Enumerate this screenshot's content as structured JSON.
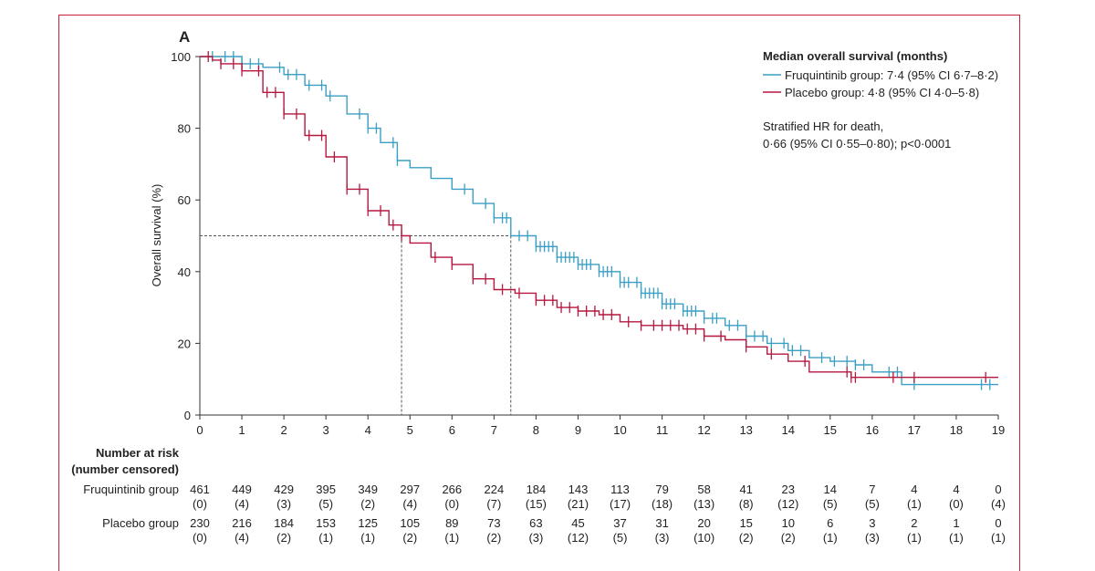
{
  "chart_data": {
    "type": "line",
    "panel_label": "A",
    "ylabel": "Overall survival (%)",
    "xlim": [
      0,
      19
    ],
    "ylim": [
      0,
      100
    ],
    "x_ticks": [
      "0",
      "1",
      "2",
      "3",
      "4",
      "5",
      "6",
      "7",
      "8",
      "9",
      "10",
      "11",
      "12",
      "13",
      "14",
      "15",
      "16",
      "17",
      "18",
      "19"
    ],
    "y_ticks": [
      "0",
      "20",
      "40",
      "60",
      "80",
      "100"
    ],
    "legend": {
      "title": "Median overall survival (months)",
      "entries": [
        {
          "label": "Fruquintinib group: 7·4 (95% CI 6·7–8·2)",
          "color": "#3a9fc4"
        },
        {
          "label": "Placebo group: 4·8 (95% CI 4·0–5·8)",
          "color": "#b5173f"
        }
      ],
      "hr_line1": "Stratified HR for death,",
      "hr_line2": "0·66 (95% CI 0·55–0·80); p<0·0001"
    },
    "median_lines": {
      "y": 50,
      "x": [
        4.8,
        7.4
      ]
    },
    "series": [
      {
        "name": "Fruquintinib group",
        "color": "#3a9fc4",
        "points": [
          [
            0,
            100
          ],
          [
            0.5,
            100
          ],
          [
            1,
            98
          ],
          [
            1.5,
            97
          ],
          [
            2,
            95
          ],
          [
            2.5,
            92
          ],
          [
            3,
            89
          ],
          [
            3.5,
            84
          ],
          [
            4,
            80
          ],
          [
            4.3,
            76
          ],
          [
            4.7,
            71
          ],
          [
            5,
            69
          ],
          [
            5.5,
            66
          ],
          [
            6,
            63
          ],
          [
            6.5,
            59
          ],
          [
            7,
            55
          ],
          [
            7.4,
            50
          ],
          [
            8,
            47
          ],
          [
            8.5,
            44
          ],
          [
            9,
            42
          ],
          [
            9.5,
            40
          ],
          [
            10,
            37
          ],
          [
            10.5,
            34
          ],
          [
            11,
            31
          ],
          [
            11.5,
            29
          ],
          [
            12,
            27
          ],
          [
            12.5,
            25
          ],
          [
            13,
            22
          ],
          [
            13.5,
            20
          ],
          [
            14,
            18
          ],
          [
            14.5,
            16
          ],
          [
            15,
            15
          ],
          [
            15.6,
            14
          ],
          [
            16,
            12
          ],
          [
            16.6,
            12
          ],
          [
            16.7,
            8.5
          ],
          [
            17,
            8.5
          ],
          [
            18,
            8.5
          ],
          [
            19,
            8.5
          ]
        ],
        "censor_x": [
          0.3,
          0.6,
          0.8,
          1.0,
          1.2,
          1.4,
          1.9,
          2.1,
          2.3,
          2.6,
          2.9,
          3.1,
          3.8,
          4.0,
          4.2,
          4.6,
          4.7,
          6.3,
          6.8,
          7.0,
          7.2,
          7.3,
          7.6,
          7.8,
          8.0,
          8.1,
          8.2,
          8.3,
          8.4,
          8.5,
          8.6,
          8.7,
          8.8,
          8.9,
          9.0,
          9.1,
          9.2,
          9.3,
          9.5,
          9.6,
          9.7,
          9.8,
          10.0,
          10.1,
          10.2,
          10.4,
          10.5,
          10.6,
          10.7,
          10.8,
          10.9,
          11.0,
          11.1,
          11.2,
          11.3,
          11.5,
          11.6,
          11.7,
          11.8,
          12.0,
          12.2,
          12.3,
          12.6,
          12.8,
          13.0,
          13.2,
          13.4,
          13.6,
          13.9,
          14.1,
          14.3,
          14.8,
          15.1,
          15.4,
          15.6,
          15.8,
          16.4,
          16.6,
          17.0,
          18.6,
          18.8
        ]
      },
      {
        "name": "Placebo group",
        "color": "#b5173f",
        "points": [
          [
            0,
            100
          ],
          [
            0.3,
            99
          ],
          [
            0.5,
            98
          ],
          [
            1,
            96
          ],
          [
            1.5,
            90
          ],
          [
            2,
            84
          ],
          [
            2.5,
            78
          ],
          [
            3,
            72
          ],
          [
            3.5,
            63
          ],
          [
            4,
            57
          ],
          [
            4.5,
            53
          ],
          [
            4.8,
            50
          ],
          [
            5,
            48
          ],
          [
            5.5,
            44
          ],
          [
            6,
            42
          ],
          [
            6.5,
            38
          ],
          [
            7,
            35
          ],
          [
            7.5,
            34
          ],
          [
            8,
            32
          ],
          [
            8.5,
            30
          ],
          [
            9,
            29
          ],
          [
            9.5,
            28
          ],
          [
            10,
            26
          ],
          [
            10.5,
            25
          ],
          [
            11,
            25
          ],
          [
            11.5,
            24
          ],
          [
            12,
            22
          ],
          [
            12.5,
            21
          ],
          [
            13,
            19
          ],
          [
            13.5,
            17
          ],
          [
            14,
            15
          ],
          [
            14.5,
            12
          ],
          [
            15,
            12
          ],
          [
            15.5,
            10.5
          ],
          [
            16,
            10.5
          ],
          [
            17,
            10.5
          ],
          [
            18,
            10.5
          ],
          [
            18.8,
            10.5
          ],
          [
            19,
            10.5
          ]
        ],
        "censor_x": [
          0.2,
          0.5,
          0.8,
          1.0,
          1.4,
          1.6,
          1.8,
          2.0,
          2.3,
          2.6,
          2.9,
          3.2,
          3.5,
          3.8,
          4.0,
          4.3,
          4.6,
          4.8,
          5.6,
          6.0,
          6.5,
          6.8,
          7.2,
          7.6,
          8.0,
          8.2,
          8.4,
          8.6,
          8.8,
          9.0,
          9.2,
          9.4,
          9.6,
          9.8,
          10.2,
          10.5,
          10.8,
          11.0,
          11.2,
          11.4,
          11.6,
          11.8,
          12.0,
          12.4,
          13.0,
          13.6,
          14.4,
          15.4,
          15.5,
          15.6,
          16.5,
          17.0,
          18.7
        ]
      }
    ],
    "risk_table": {
      "header_line1": "Number at risk",
      "header_line2": "(number censored)",
      "rows": [
        {
          "label": "Fruquintinib group",
          "at_risk": [
            "461",
            "449",
            "429",
            "395",
            "349",
            "297",
            "266",
            "224",
            "184",
            "143",
            "113",
            "79",
            "58",
            "41",
            "23",
            "14",
            "7",
            "4",
            "4",
            "0"
          ],
          "censored": [
            "(0)",
            "(4)",
            "(3)",
            "(5)",
            "(2)",
            "(4)",
            "(0)",
            "(7)",
            "(15)",
            "(21)",
            "(17)",
            "(18)",
            "(13)",
            "(8)",
            "(12)",
            "(5)",
            "(5)",
            "(1)",
            "(0)",
            "(4)"
          ]
        },
        {
          "label": "Placebo group",
          "at_risk": [
            "230",
            "216",
            "184",
            "153",
            "125",
            "105",
            "89",
            "73",
            "63",
            "45",
            "37",
            "31",
            "20",
            "15",
            "10",
            "6",
            "3",
            "2",
            "1",
            "0"
          ],
          "censored": [
            "(0)",
            "(4)",
            "(2)",
            "(1)",
            "(1)",
            "(2)",
            "(1)",
            "(2)",
            "(3)",
            "(12)",
            "(5)",
            "(3)",
            "(10)",
            "(2)",
            "(2)",
            "(1)",
            "(3)",
            "(1)",
            "(1)",
            "(1)"
          ]
        }
      ]
    }
  }
}
